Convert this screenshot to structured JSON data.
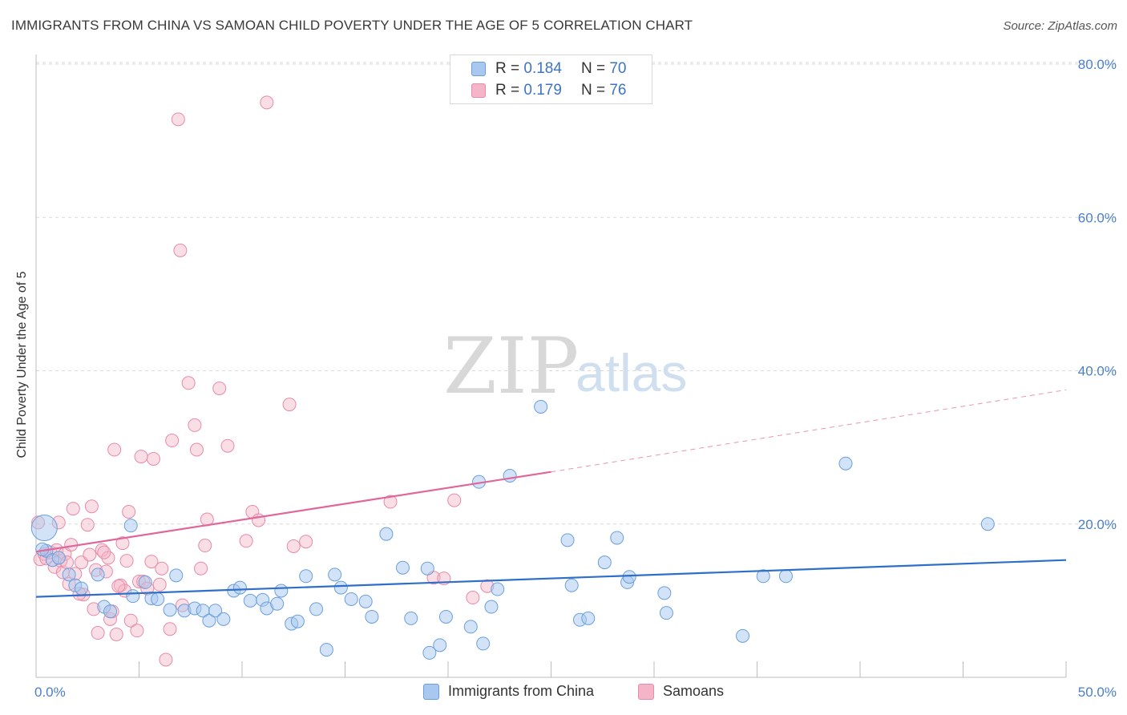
{
  "header": {
    "title": "IMMIGRANTS FROM CHINA VS SAMOAN CHILD POVERTY UNDER THE AGE OF 5 CORRELATION CHART",
    "source": "Source: ZipAtlas.com"
  },
  "watermark": {
    "zip": "ZIP",
    "atlas": "atlas"
  },
  "legend_top": [
    {
      "r_label": "R =",
      "r_value": "0.184",
      "n_label": "N =",
      "n_value": "70"
    },
    {
      "r_label": "R =",
      "r_value": "0.179",
      "n_label": "N =",
      "n_value": "76"
    }
  ],
  "legend_bottom": [
    {
      "label": "Immigrants from China"
    },
    {
      "label": "Samoans"
    }
  ],
  "colors": {
    "china_fill": "#a8c8f0",
    "china_stroke": "#6a9fdb",
    "china_line": "#2f6fc9",
    "samoa_fill": "#f5b5c8",
    "samoa_stroke": "#e88aa8",
    "samoa_line": "#e0679a",
    "grid": "#d9d9d9",
    "tick_text": "#4a7fc8"
  },
  "chart_data": {
    "type": "scatter",
    "title": "IMMIGRANTS FROM CHINA VS SAMOAN CHILD POVERTY UNDER THE AGE OF 5 CORRELATION CHART",
    "xlabel": "",
    "ylabel": "Child Poverty Under the Age of 5",
    "xlim": [
      0,
      50
    ],
    "ylim": [
      0,
      80
    ],
    "x_ticks": [
      "0.0%",
      "50.0%"
    ],
    "y_ticks": [
      "20.0%",
      "40.0%",
      "60.0%",
      "80.0%"
    ],
    "y_tick_values": [
      20,
      40,
      60,
      80
    ],
    "grid": true,
    "legend_position": "top-center",
    "series": [
      {
        "name": "Immigrants from China",
        "color": "#a8c8f0",
        "points": [
          [
            0.4,
            19.5
          ],
          [
            0.5,
            16.5
          ],
          [
            0.8,
            15.3
          ],
          [
            1.1,
            15.6
          ],
          [
            1.6,
            13.4
          ],
          [
            1.9,
            12.0
          ],
          [
            2.2,
            11.6
          ],
          [
            3.0,
            13.4
          ],
          [
            3.3,
            9.2
          ],
          [
            3.6,
            8.6
          ],
          [
            4.6,
            19.8
          ],
          [
            4.7,
            10.6
          ],
          [
            5.3,
            12.4
          ],
          [
            5.6,
            10.3
          ],
          [
            5.9,
            10.2
          ],
          [
            6.5,
            8.8
          ],
          [
            6.8,
            13.3
          ],
          [
            7.2,
            8.7
          ],
          [
            7.7,
            9.0
          ],
          [
            8.1,
            8.7
          ],
          [
            8.4,
            7.4
          ],
          [
            8.7,
            8.7
          ],
          [
            9.1,
            7.6
          ],
          [
            9.6,
            11.3
          ],
          [
            9.9,
            11.7
          ],
          [
            10.4,
            10.0
          ],
          [
            11.0,
            10.1
          ],
          [
            11.2,
            9.0
          ],
          [
            11.7,
            9.6
          ],
          [
            11.9,
            11.3
          ],
          [
            12.4,
            7.0
          ],
          [
            12.7,
            7.3
          ],
          [
            13.1,
            13.2
          ],
          [
            13.6,
            8.9
          ],
          [
            14.1,
            3.6
          ],
          [
            14.5,
            13.4
          ],
          [
            14.8,
            11.7
          ],
          [
            15.3,
            10.2
          ],
          [
            16.0,
            9.9
          ],
          [
            16.3,
            7.9
          ],
          [
            17.0,
            18.7
          ],
          [
            17.8,
            14.3
          ],
          [
            18.2,
            7.7
          ],
          [
            19.0,
            14.2
          ],
          [
            19.1,
            3.2
          ],
          [
            19.6,
            4.2
          ],
          [
            19.9,
            7.9
          ],
          [
            21.1,
            6.6
          ],
          [
            21.5,
            25.5
          ],
          [
            21.7,
            4.4
          ],
          [
            22.1,
            9.2
          ],
          [
            22.4,
            11.5
          ],
          [
            23.0,
            26.3
          ],
          [
            24.5,
            35.3
          ],
          [
            25.8,
            17.9
          ],
          [
            26.0,
            12.0
          ],
          [
            26.4,
            7.5
          ],
          [
            26.8,
            7.7
          ],
          [
            27.6,
            15.0
          ],
          [
            28.2,
            18.2
          ],
          [
            28.7,
            12.4
          ],
          [
            28.8,
            13.1
          ],
          [
            30.5,
            11.0
          ],
          [
            30.6,
            8.4
          ],
          [
            34.3,
            5.4
          ],
          [
            35.3,
            13.2
          ],
          [
            36.4,
            13.2
          ],
          [
            39.3,
            27.9
          ],
          [
            46.2,
            20.0
          ],
          [
            0.3,
            16.7
          ]
        ]
      },
      {
        "name": "Samoans",
        "color": "#f5b5c8",
        "points": [
          [
            0.1,
            20.2
          ],
          [
            0.2,
            15.4
          ],
          [
            0.4,
            16.1
          ],
          [
            0.5,
            15.5
          ],
          [
            0.7,
            16.3
          ],
          [
            0.9,
            14.4
          ],
          [
            1.0,
            16.6
          ],
          [
            1.1,
            20.2
          ],
          [
            1.2,
            15.2
          ],
          [
            1.3,
            13.7
          ],
          [
            1.4,
            16.1
          ],
          [
            1.6,
            12.2
          ],
          [
            1.7,
            17.3
          ],
          [
            1.8,
            22.0
          ],
          [
            1.9,
            13.5
          ],
          [
            2.2,
            15.0
          ],
          [
            2.3,
            10.8
          ],
          [
            2.5,
            19.9
          ],
          [
            2.6,
            16.0
          ],
          [
            2.7,
            22.3
          ],
          [
            2.8,
            8.9
          ],
          [
            2.9,
            14.0
          ],
          [
            3.0,
            5.8
          ],
          [
            3.2,
            16.6
          ],
          [
            3.4,
            13.8
          ],
          [
            3.5,
            15.6
          ],
          [
            3.6,
            7.6
          ],
          [
            3.7,
            8.6
          ],
          [
            3.8,
            29.7
          ],
          [
            3.9,
            5.6
          ],
          [
            4.1,
            12.0
          ],
          [
            4.2,
            17.5
          ],
          [
            4.3,
            11.3
          ],
          [
            4.4,
            15.2
          ],
          [
            4.5,
            21.6
          ],
          [
            4.6,
            7.4
          ],
          [
            4.9,
            6.1
          ],
          [
            5.0,
            12.5
          ],
          [
            5.1,
            28.8
          ],
          [
            5.2,
            12.5
          ],
          [
            5.4,
            11.6
          ],
          [
            5.6,
            15.1
          ],
          [
            5.7,
            28.5
          ],
          [
            6.1,
            14.2
          ],
          [
            6.3,
            2.3
          ],
          [
            6.5,
            6.3
          ],
          [
            6.6,
            30.9
          ],
          [
            6.9,
            72.8
          ],
          [
            7.0,
            55.7
          ],
          [
            7.1,
            9.4
          ],
          [
            7.4,
            38.4
          ],
          [
            7.7,
            32.9
          ],
          [
            7.8,
            29.7
          ],
          [
            8.2,
            17.2
          ],
          [
            8.3,
            20.6
          ],
          [
            8.9,
            37.7
          ],
          [
            9.3,
            30.2
          ],
          [
            10.2,
            17.8
          ],
          [
            10.5,
            21.6
          ],
          [
            10.8,
            20.5
          ],
          [
            11.2,
            75.0
          ],
          [
            12.3,
            35.6
          ],
          [
            12.5,
            17.1
          ],
          [
            13.1,
            17.7
          ],
          [
            17.2,
            22.9
          ],
          [
            19.3,
            13.0
          ],
          [
            19.8,
            12.9
          ],
          [
            20.3,
            23.1
          ],
          [
            21.2,
            10.4
          ],
          [
            21.9,
            11.9
          ],
          [
            4.0,
            11.9
          ],
          [
            2.1,
            10.9
          ],
          [
            8.0,
            14.2
          ],
          [
            6.0,
            12.1
          ],
          [
            3.3,
            16.3
          ],
          [
            1.5,
            15.0
          ]
        ]
      }
    ],
    "trendlines": [
      {
        "series": "Immigrants from China",
        "x": [
          0,
          50
        ],
        "y": [
          10.5,
          15.3
        ],
        "style": "solid"
      },
      {
        "series": "Samoans",
        "x": [
          0,
          25
        ],
        "y": [
          16.4,
          26.8
        ],
        "style": "solid"
      },
      {
        "series": "Samoans",
        "x": [
          25,
          50
        ],
        "y": [
          26.8,
          37.5
        ],
        "style": "dashed"
      }
    ]
  }
}
